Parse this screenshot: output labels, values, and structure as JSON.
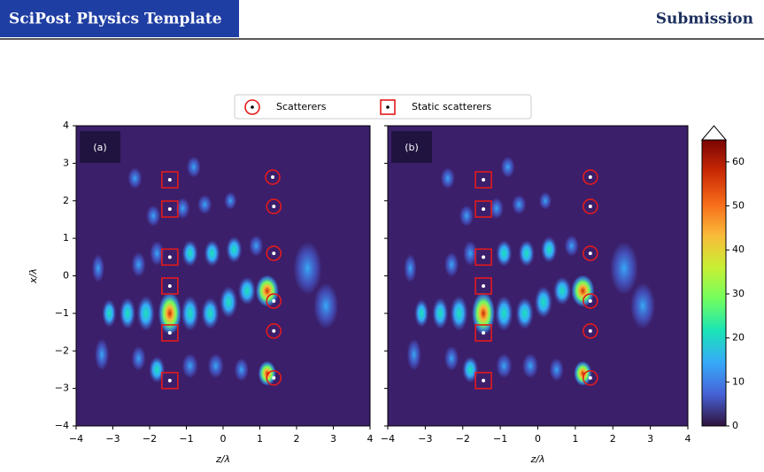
{
  "header": {
    "title": "SciPost Physics Template",
    "status": "Submission"
  },
  "chart_data": [
    {
      "type": "scatter",
      "panel_label": "(a)",
      "xlabel": "z/λ",
      "ylabel": "x/λ",
      "xlim": [
        -4,
        4
      ],
      "ylim": [
        -4,
        4
      ],
      "xticks": [
        {
          "value": -4,
          "label": "−4"
        },
        {
          "value": -3,
          "label": "−3"
        },
        {
          "value": -2,
          "label": "−2"
        },
        {
          "value": -1,
          "label": "−1"
        },
        0,
        1,
        2,
        3,
        4
      ],
      "yticks": [
        {
          "value": -4,
          "label": "−4"
        },
        {
          "value": -3,
          "label": "−3"
        },
        {
          "value": -2,
          "label": "−2"
        },
        {
          "value": -1,
          "label": "−1"
        },
        0,
        1,
        2,
        3,
        4
      ],
      "series": [
        {
          "name": "Scatterers",
          "marker": "circle",
          "color": "#e31a1c",
          "x": [
            1.35,
            1.38,
            1.38,
            1.38,
            1.38,
            1.38
          ],
          "y": [
            2.63,
            1.85,
            0.6,
            -0.67,
            -1.47,
            -2.72
          ]
        },
        {
          "name": "Static scatterers",
          "marker": "square",
          "color": "#e31a1c",
          "x": [
            -1.45,
            -1.45,
            -1.45,
            -1.45,
            -1.45,
            -1.45
          ],
          "y": [
            2.56,
            1.78,
            0.5,
            -0.27,
            -1.52,
            -2.79
          ]
        }
      ]
    },
    {
      "type": "scatter",
      "panel_label": "(b)",
      "xlabel": "z/λ",
      "xlim": [
        -4,
        4
      ],
      "ylim": [
        -4,
        4
      ],
      "xticks": [
        {
          "value": -4,
          "label": "−4"
        },
        {
          "value": -3,
          "label": "−3"
        },
        {
          "value": -2,
          "label": "−2"
        },
        {
          "value": -1,
          "label": "−1"
        },
        0,
        1,
        2,
        3,
        4
      ],
      "series": [
        {
          "marker": "circle",
          "color": "#e31a1c",
          "x": [
            1.4,
            1.4,
            1.4,
            1.4,
            1.4,
            1.4
          ],
          "y": [
            2.63,
            1.85,
            0.6,
            -0.67,
            -1.47,
            -2.72
          ]
        },
        {
          "marker": "square",
          "color": "#e31a1c",
          "x": [
            -1.45,
            -1.45,
            -1.45,
            -1.45,
            -1.45,
            -1.45
          ],
          "y": [
            2.56,
            1.78,
            0.5,
            -0.27,
            -1.52,
            -2.79
          ]
        }
      ]
    }
  ],
  "colorbar": {
    "lim": [
      0,
      65
    ],
    "ticks": [
      0,
      10,
      20,
      30,
      40,
      50,
      60
    ],
    "extend": "max",
    "colormap": [
      "#30123b",
      "#4662d7",
      "#36aaf9",
      "#1ae4b6",
      "#72fe5e",
      "#c8ef34",
      "#faba39",
      "#f66b19",
      "#ca2a04",
      "#7a0403"
    ]
  }
}
